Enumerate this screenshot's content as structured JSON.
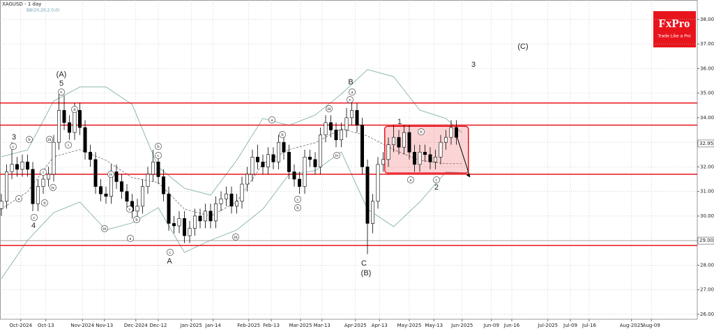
{
  "chart_data": {
    "type": "candlestick",
    "title": "XAGUSD - 1 day",
    "subtitle": "BB(20,20,2.0,0)",
    "logo": {
      "name": "FxPro",
      "tagline": "Trade Like a Pro"
    },
    "x": [
      0,
      1,
      2,
      3,
      4,
      5,
      6,
      7,
      8,
      9,
      10,
      11,
      12,
      13,
      14,
      15,
      16,
      17,
      18,
      19,
      20,
      21,
      22,
      23,
      24,
      25,
      26,
      27,
      28,
      29,
      30,
      31,
      32,
      33,
      34,
      35,
      36,
      37,
      38,
      39,
      40,
      41,
      42,
      43,
      44,
      45,
      46,
      47,
      48,
      49,
      50,
      51,
      52,
      53,
      54,
      55,
      56,
      57,
      58,
      59,
      60,
      61,
      62,
      63,
      64,
      65,
      66,
      67,
      68,
      69,
      70,
      71,
      72,
      73,
      74,
      75,
      76,
      77,
      78,
      79,
      80,
      81,
      82,
      83,
      84,
      85,
      86,
      87
    ],
    "open": [
      30.3,
      30.6,
      31.8,
      32.1,
      31.9,
      32.2,
      31.9,
      30.5,
      31.2,
      31.5,
      31.7,
      33.0,
      34.3,
      33.8,
      33.4,
      34.3,
      33.6,
      32.6,
      32.3,
      31.2,
      30.9,
      30.8,
      31.8,
      31.4,
      31.0,
      30.6,
      30.2,
      30.4,
      31.2,
      31.7,
      32.2,
      31.6,
      30.9,
      29.7,
      29.6,
      29.9,
      29.2,
      29.5,
      30.0,
      29.8,
      30.2,
      29.8,
      30.5,
      30.7,
      30.9,
      30.4,
      30.6,
      31.3,
      31.7,
      32.4,
      32.2,
      32.0,
      32.5,
      32.2,
      33.0,
      32.6,
      31.8,
      31.5,
      31.2,
      32.4,
      32.3,
      32.0,
      33.3,
      33.8,
      33.5,
      33.1,
      33.5,
      34.0,
      34.3,
      33.7,
      32.0,
      29.7,
      30.6,
      32.1,
      32.3,
      32.9,
      33.2,
      32.8,
      33.4,
      32.6,
      32.1,
      32.6,
      32.5,
      32.2,
      32.4,
      33.0,
      33.2,
      33.6
    ],
    "high": [
      30.9,
      32.1,
      33.0,
      32.4,
      32.5,
      32.5,
      32.2,
      31.5,
      31.8,
      32.0,
      33.3,
      35.0,
      34.9,
      34.1,
      34.6,
      34.6,
      33.9,
      32.9,
      32.6,
      31.5,
      31.2,
      32.1,
      32.1,
      31.7,
      31.3,
      30.9,
      30.7,
      31.5,
      32.0,
      32.7,
      32.5,
      31.9,
      31.2,
      30.0,
      30.2,
      30.2,
      29.8,
      30.3,
      30.3,
      30.5,
      30.5,
      30.8,
      31.0,
      31.2,
      31.2,
      30.9,
      31.6,
      32.0,
      32.7,
      32.9,
      32.5,
      32.8,
      32.8,
      33.3,
      33.3,
      32.9,
      32.1,
      31.8,
      32.7,
      32.7,
      32.6,
      33.6,
      34.1,
      34.1,
      33.8,
      33.8,
      34.4,
      34.8,
      34.6,
      34.0,
      32.3,
      30.9,
      32.4,
      32.6,
      33.2,
      33.7,
      33.5,
      33.7,
      33.7,
      32.9,
      32.9,
      32.9,
      32.8,
      32.7,
      33.3,
      33.5,
      33.9,
      33.9
    ],
    "low": [
      30.0,
      30.3,
      31.5,
      31.6,
      31.6,
      31.6,
      30.2,
      30.2,
      30.9,
      31.2,
      31.4,
      32.7,
      33.5,
      33.1,
      33.1,
      33.3,
      32.3,
      32.0,
      30.9,
      30.6,
      30.5,
      30.5,
      31.1,
      30.7,
      30.3,
      29.9,
      29.9,
      30.1,
      30.9,
      31.4,
      31.3,
      30.6,
      29.4,
      29.3,
      29.3,
      28.9,
      28.9,
      29.2,
      29.5,
      29.5,
      29.5,
      29.5,
      30.2,
      30.4,
      30.1,
      30.1,
      30.3,
      31.0,
      31.4,
      31.9,
      31.7,
      31.7,
      31.9,
      31.9,
      32.3,
      31.5,
      31.2,
      30.9,
      30.9,
      32.0,
      31.7,
      31.7,
      33.0,
      33.2,
      32.8,
      32.8,
      33.2,
      33.7,
      33.4,
      31.7,
      28.45,
      29.3,
      30.3,
      31.8,
      32.0,
      32.6,
      32.5,
      32.5,
      32.3,
      31.8,
      31.8,
      32.2,
      31.9,
      31.9,
      32.1,
      32.7,
      32.9,
      32.9
    ],
    "close": [
      30.6,
      31.8,
      32.1,
      31.9,
      32.2,
      31.9,
      30.5,
      31.2,
      31.5,
      31.7,
      33.0,
      34.3,
      33.8,
      33.4,
      34.3,
      33.6,
      32.6,
      32.3,
      31.2,
      30.9,
      30.8,
      31.8,
      31.4,
      31.0,
      30.6,
      30.2,
      30.4,
      31.2,
      31.7,
      32.2,
      31.6,
      30.9,
      29.7,
      29.6,
      29.9,
      29.2,
      29.5,
      30.0,
      29.8,
      30.2,
      29.8,
      30.5,
      30.7,
      30.9,
      30.4,
      30.6,
      31.3,
      31.7,
      32.4,
      32.2,
      32.0,
      32.5,
      32.2,
      33.0,
      32.6,
      31.8,
      31.5,
      31.2,
      32.4,
      32.3,
      32.0,
      33.3,
      33.8,
      33.5,
      33.1,
      33.5,
      34.0,
      34.3,
      33.7,
      32.0,
      29.7,
      30.6,
      32.1,
      32.3,
      32.9,
      33.2,
      32.8,
      33.4,
      32.6,
      32.1,
      32.6,
      32.5,
      32.2,
      32.4,
      33.0,
      33.2,
      33.6,
      33.2
    ],
    "up_color": "#ffffff",
    "down_color": "#000000",
    "bands": {
      "color": "#8fb8b0",
      "x": [
        0,
        5,
        10,
        15,
        20,
        25,
        30,
        35,
        40,
        45,
        50,
        55,
        60,
        65,
        70,
        75,
        80,
        85,
        88
      ],
      "upper": [
        32.41,
        32.69,
        34.68,
        35.25,
        35.25,
        34.54,
        31.99,
        31.13,
        30.85,
        32.27,
        33.97,
        33.69,
        34.11,
        34.96,
        35.96,
        35.67,
        34.31,
        33.97,
        33.4
      ],
      "middle": [
        30.28,
        30.99,
        32.41,
        32.7,
        32.27,
        31.56,
        31.36,
        30.28,
        30.0,
        30.57,
        32.13,
        32.7,
        32.98,
        33.55,
        33.26,
        32.7,
        32.27,
        32.13,
        32.13
      ],
      "lower": [
        27.45,
        29.01,
        30.14,
        30.57,
        29.43,
        29.72,
        30.34,
        28.52,
        29.01,
        29.43,
        30.28,
        31.7,
        31.84,
        32.61,
        30.28,
        29.57,
        30.57,
        31.79,
        31.76
      ]
    },
    "levels": [
      34.6,
      33.7,
      31.7,
      28.8
    ],
    "level_color": "#e8141c",
    "box": {
      "x": [
        73.3,
        89.3
      ],
      "y": [
        31.75,
        33.65
      ]
    },
    "arrow": {
      "x": [
        87,
        89.6
      ],
      "y": [
        33.3,
        31.6
      ]
    },
    "price_markers": [
      {
        "value": 32.95,
        "label": "32.95"
      },
      {
        "value": 29.0,
        "label": "29.00"
      }
    ],
    "wave_labels": [
      "3",
      "4",
      "5",
      "(A)",
      "A",
      "B",
      "C",
      "(B)",
      "1",
      "2",
      "(C)",
      "3"
    ],
    "circled_labels": [
      "c",
      "b",
      "i",
      "ii",
      "iv",
      "iii",
      "i",
      "ii",
      "v",
      "c",
      "a",
      "iv",
      "iii",
      "v",
      "b",
      "a",
      "b",
      "c",
      "c",
      "a",
      "v",
      "iii",
      "iv",
      "a",
      "b",
      "c",
      "a",
      "b",
      "c",
      "b",
      "iii"
    ],
    "xlim": [
      -0.27,
      133.07
    ],
    "ylim": [
      25.8,
      38.79
    ],
    "yticks": [
      {
        "value": 26,
        "label": "26.00"
      },
      {
        "value": 27,
        "label": "27.00"
      },
      {
        "value": 28,
        "label": "28.00"
      },
      {
        "value": 29,
        "label": "29.00"
      },
      {
        "value": 30,
        "label": "30.00"
      },
      {
        "value": 31,
        "label": "31.00"
      },
      {
        "value": 32,
        "label": "32.00"
      },
      {
        "value": 33,
        "label": "33.00"
      },
      {
        "value": 34,
        "label": "34.00"
      },
      {
        "value": 35,
        "label": "35.00"
      },
      {
        "value": 36,
        "label": "36.00"
      },
      {
        "value": 37,
        "label": "37.00"
      },
      {
        "value": 38,
        "label": "38.00"
      }
    ],
    "xticks": [
      {
        "value": 3.7,
        "label": "Oct-2024"
      },
      {
        "value": 8.5,
        "label": "Oct-13"
      },
      {
        "value": 15.5,
        "label": "Nov-2024"
      },
      {
        "value": 19.7,
        "label": "Nov-13"
      },
      {
        "value": 25.7,
        "label": "Dec-2024"
      },
      {
        "value": 30,
        "label": "Dec-12"
      },
      {
        "value": 36.3,
        "label": "Jan-2025"
      },
      {
        "value": 40.5,
        "label": "Jan-14"
      },
      {
        "value": 47.3,
        "label": "Feb-2025"
      },
      {
        "value": 51.6,
        "label": "Feb-13"
      },
      {
        "value": 57.2,
        "label": "Mar-2025"
      },
      {
        "value": 61.3,
        "label": "Mar-13"
      },
      {
        "value": 67.7,
        "label": "Apr-2025"
      },
      {
        "value": 72.3,
        "label": "Apr-13"
      },
      {
        "value": 78,
        "label": "May-2025"
      },
      {
        "value": 82.7,
        "label": "May-13"
      },
      {
        "value": 88.1,
        "label": "Jun-2025"
      },
      {
        "value": 93.7,
        "label": "Jun-09"
      },
      {
        "value": 97.6,
        "label": "Jun-16"
      },
      {
        "value": 104.5,
        "label": "Jul-2025"
      },
      {
        "value": 108.8,
        "label": "Jul-09"
      },
      {
        "value": 112.4,
        "label": "Jul-16"
      },
      {
        "value": 120.5,
        "label": "Aug-2025"
      },
      {
        "value": 124.3,
        "label": "Aug-09"
      }
    ],
    "grid": true
  }
}
